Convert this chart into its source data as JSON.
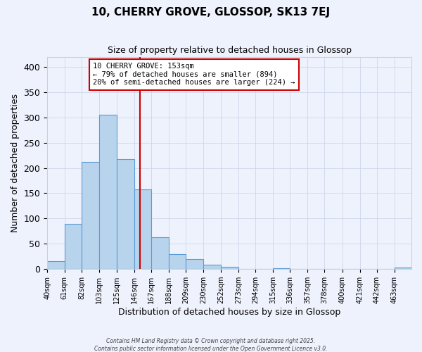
{
  "title": "10, CHERRY GROVE, GLOSSOP, SK13 7EJ",
  "subtitle": "Size of property relative to detached houses in Glossop",
  "xlabel": "Distribution of detached houses by size in Glossop",
  "ylabel": "Number of detached properties",
  "bin_labels": [
    "40sqm",
    "61sqm",
    "82sqm",
    "103sqm",
    "125sqm",
    "146sqm",
    "167sqm",
    "188sqm",
    "209sqm",
    "230sqm",
    "252sqm",
    "273sqm",
    "294sqm",
    "315sqm",
    "336sqm",
    "357sqm",
    "378sqm",
    "400sqm",
    "421sqm",
    "442sqm",
    "463sqm"
  ],
  "bin_starts": [
    40,
    61,
    82,
    103,
    125,
    146,
    167,
    188,
    209,
    230,
    252,
    273,
    294,
    315,
    336,
    357,
    378,
    400,
    421,
    442,
    463
  ],
  "bar_values": [
    15,
    90,
    212,
    305,
    218,
    158,
    63,
    30,
    20,
    9,
    4,
    0,
    0,
    2,
    0,
    0,
    0,
    0,
    0,
    0,
    3
  ],
  "bar_color": "#b8d4ec",
  "bar_edge_color": "#5b9bd5",
  "vline_x": 153,
  "vline_color": "#cc0000",
  "annotation_text": "10 CHERRY GROVE: 153sqm\n← 79% of detached houses are smaller (894)\n20% of semi-detached houses are larger (224) →",
  "annotation_box_color": "#ffffff",
  "annotation_box_edge_color": "#cc0000",
  "ylim": [
    0,
    420
  ],
  "xlim_start": 40,
  "xlim_end": 484,
  "background_color": "#eef2fc",
  "grid_color": "#c8d0e8",
  "footer_line1": "Contains HM Land Registry data © Crown copyright and database right 2025.",
  "footer_line2": "Contains public sector information licensed under the Open Government Licence v3.0."
}
